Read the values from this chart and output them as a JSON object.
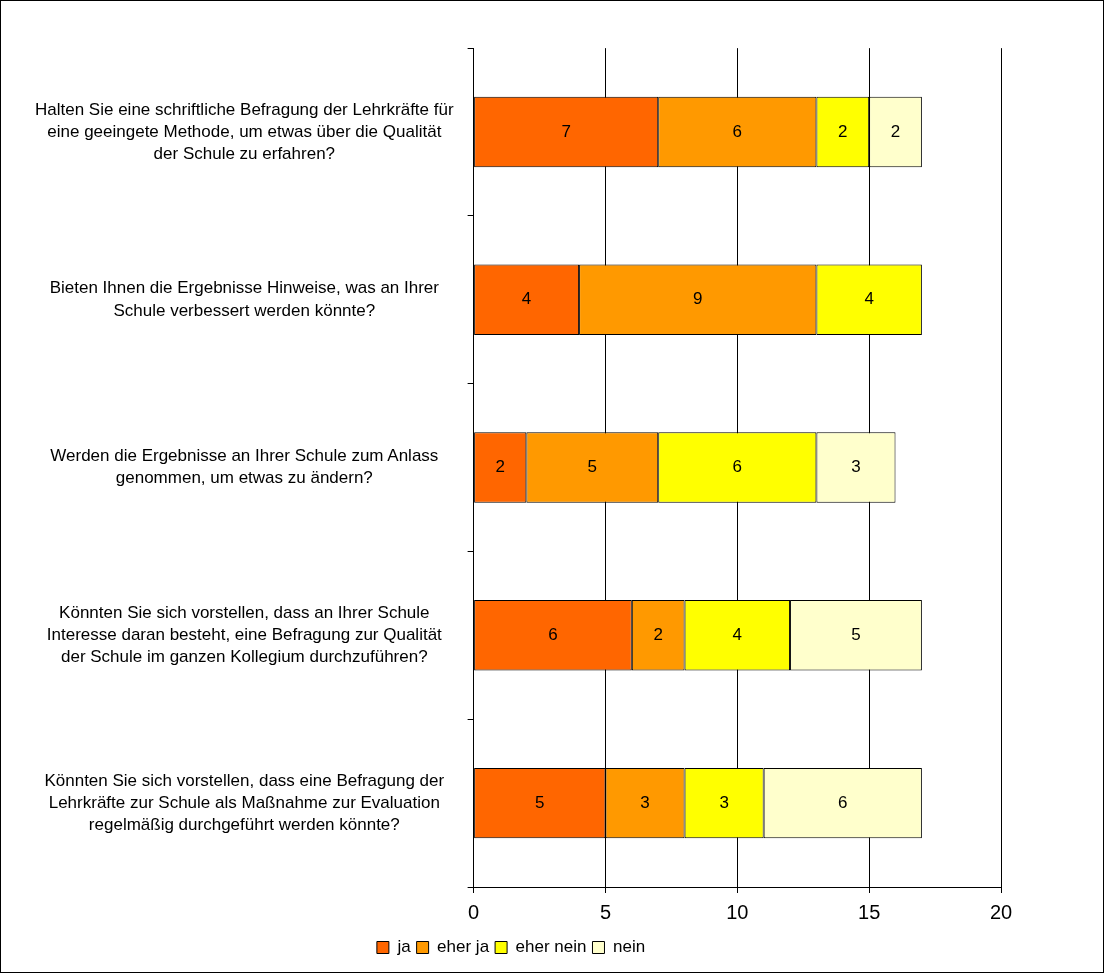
{
  "chart_data": {
    "type": "bar",
    "orientation": "horizontal",
    "stacked": true,
    "categories": [
      "Halten Sie eine schriftliche Befragung der Lehrkräfte für eine geeingete Methode, um etwas über die Qualität der Schule zu erfahren?",
      "Bieten Ihnen die Ergebnisse Hinweise, was an Ihrer Schule verbessert werden könnte?",
      "Werden die Ergebnisse an Ihrer Schule zum Anlass genommen, um etwas zu ändern?",
      "Könnten Sie sich vorstellen, dass an Ihrer Schule Interesse daran besteht, eine Befragung zur Qualität der Schule im ganzen Kollegium durchzuführen?",
      "Könnten Sie sich vorstellen, dass eine Befragung der Lehrkräfte zur Schule als Maßnahme zur Evaluation regelmäßig durchgeführt werden könnte?"
    ],
    "series": [
      {
        "name": "ja",
        "color": "#ff6600",
        "values": [
          7,
          4,
          2,
          6,
          5
        ]
      },
      {
        "name": "eher ja",
        "color": "#ff9900",
        "values": [
          6,
          9,
          5,
          2,
          3
        ]
      },
      {
        "name": "eher nein",
        "color": "#ffff00",
        "values": [
          2,
          4,
          6,
          4,
          3
        ]
      },
      {
        "name": "nein",
        "color": "#ffffcc",
        "values": [
          2,
          null,
          3,
          5,
          6
        ]
      }
    ],
    "xlim": [
      0,
      20
    ],
    "xticks": [
      0,
      5,
      10,
      15,
      20
    ],
    "grid": "x",
    "legend": "bottom",
    "data_labels": true
  }
}
